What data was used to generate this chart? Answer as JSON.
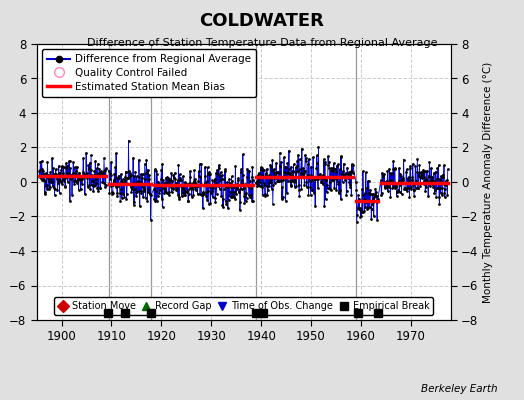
{
  "title": "COLDWATER",
  "subtitle": "Difference of Station Temperature Data from Regional Average",
  "ylabel": "Monthly Temperature Anomaly Difference (°C)",
  "credit": "Berkeley Earth",
  "bg_color": "#e0e0e0",
  "plot_bg_color": "#ffffff",
  "ylim": [
    -8,
    8
  ],
  "yticks": [
    -8,
    -6,
    -4,
    -2,
    0,
    2,
    4,
    6,
    8
  ],
  "xlim": [
    1895,
    1978
  ],
  "xticks": [
    1900,
    1910,
    1920,
    1930,
    1940,
    1950,
    1960,
    1970
  ],
  "seed": 42,
  "segments": [
    {
      "x_start": 1895.5,
      "x_end": 1909.0,
      "mean": 0.35,
      "std": 0.55,
      "bias": 0.35
    },
    {
      "x_start": 1909.5,
      "x_end": 1918.0,
      "mean": -0.1,
      "std": 0.65,
      "bias": -0.1
    },
    {
      "x_start": 1918.5,
      "x_end": 1938.5,
      "mean": -0.25,
      "std": 0.6,
      "bias": -0.2
    },
    {
      "x_start": 1939.0,
      "x_end": 1958.5,
      "mean": 0.35,
      "std": 0.65,
      "bias": 0.3
    },
    {
      "x_start": 1959.0,
      "x_end": 1963.5,
      "mean": -1.1,
      "std": 0.65,
      "bias": -1.1
    },
    {
      "x_start": 1964.0,
      "x_end": 1977.5,
      "mean": -0.05,
      "std": 0.55,
      "bias": -0.05
    }
  ],
  "vertical_lines": [
    1909.5,
    1918.0,
    1939.0,
    1959.0
  ],
  "empirical_breaks_x": [
    1909.3,
    1912.8,
    1918.0,
    1939.0,
    1940.3,
    1959.5,
    1963.5
  ],
  "line_color": "#0000cc",
  "dot_color": "#000000",
  "bias_color": "#ff0000",
  "vline_color": "#999999",
  "grid_color": "#cccccc",
  "grid_style": "--"
}
